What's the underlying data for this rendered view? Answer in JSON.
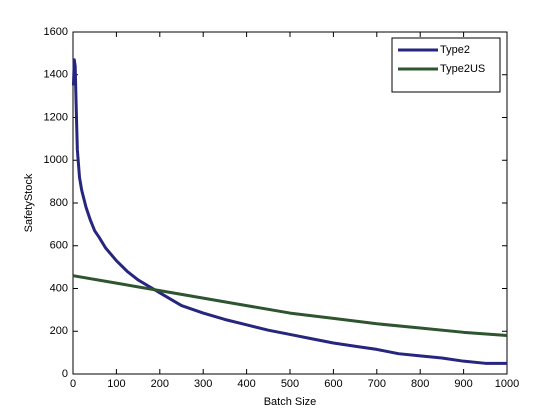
{
  "chart_data": {
    "type": "line",
    "x_label": "Batch Size",
    "y_label": "SafetyStock",
    "xlim": [
      0,
      1000
    ],
    "ylim": [
      0,
      1600
    ],
    "xticks": [
      0,
      100,
      200,
      300,
      400,
      500,
      600,
      700,
      800,
      900,
      1000
    ],
    "yticks": [
      0,
      200,
      400,
      600,
      800,
      1000,
      1200,
      1400,
      1600
    ],
    "grid": false,
    "legend": "upper right",
    "series": [
      {
        "name": "Type2",
        "color": "#26267f",
        "x": [
          1,
          3,
          5,
          8,
          10,
          15,
          20,
          30,
          40,
          50,
          60,
          75,
          100,
          125,
          150,
          175,
          200,
          250,
          300,
          350,
          400,
          450,
          500,
          550,
          600,
          650,
          700,
          750,
          800,
          850,
          900,
          950,
          1000
        ],
        "values": [
          1350,
          1470,
          1440,
          1200,
          1050,
          920,
          860,
          780,
          720,
          670,
          640,
          590,
          530,
          480,
          440,
          410,
          380,
          320,
          285,
          255,
          230,
          205,
          185,
          165,
          145,
          130,
          115,
          95,
          85,
          75,
          60,
          50,
          50
        ]
      },
      {
        "name": "Type2US",
        "color": "#2e5530",
        "x": [
          0,
          100,
          200,
          300,
          400,
          500,
          600,
          700,
          800,
          900,
          1000
        ],
        "values": [
          460,
          425,
          390,
          355,
          320,
          285,
          260,
          235,
          215,
          195,
          180
        ]
      }
    ]
  }
}
